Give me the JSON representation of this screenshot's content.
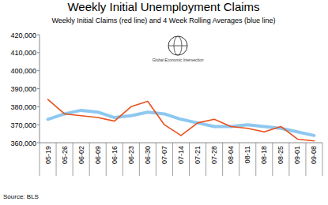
{
  "chart_data": {
    "type": "line",
    "title": "Weekly Initial Unemployment Claims",
    "subtitle": "Weekly Initial Claims (red line) and 4 Week Rolling Averages (blue line)",
    "annotations": [
      "Global Economic Intersection",
      "Source: BLS"
    ],
    "categories": [
      "05-19",
      "05-26",
      "06-02",
      "06-09",
      "06-16",
      "06-23",
      "06-30",
      "07-07",
      "07-14",
      "07-21",
      "07-28",
      "08-04",
      "08-11",
      "08-18",
      "08-25",
      "09-01",
      "09-08"
    ],
    "series": [
      {
        "color": "#e8501e",
        "values": [
          384000,
          376000,
          375000,
          374000,
          372000,
          380000,
          383000,
          370000,
          364000,
          371000,
          373000,
          369000,
          368000,
          366000,
          369000,
          362000,
          361000
        ]
      },
      {
        "color": "#8ec8f0",
        "values": [
          373000,
          376000,
          378000,
          377000,
          374000,
          375000,
          377000,
          376000,
          373000,
          371000,
          369000,
          369000,
          370000,
          369000,
          368000,
          366000,
          364000
        ]
      }
    ],
    "ylim": [
      360000,
      420000
    ],
    "yticks": [
      {
        "value": 360000,
        "label": "360,000"
      },
      {
        "value": 370000,
        "label": "370,000"
      },
      {
        "value": 380000,
        "label": "380,000"
      },
      {
        "value": 390000,
        "label": "390,000"
      },
      {
        "value": 400000,
        "label": "400,000"
      },
      {
        "value": 410000,
        "label": "410,000"
      },
      {
        "value": 420000,
        "label": "420,000"
      }
    ],
    "grid": false
  }
}
